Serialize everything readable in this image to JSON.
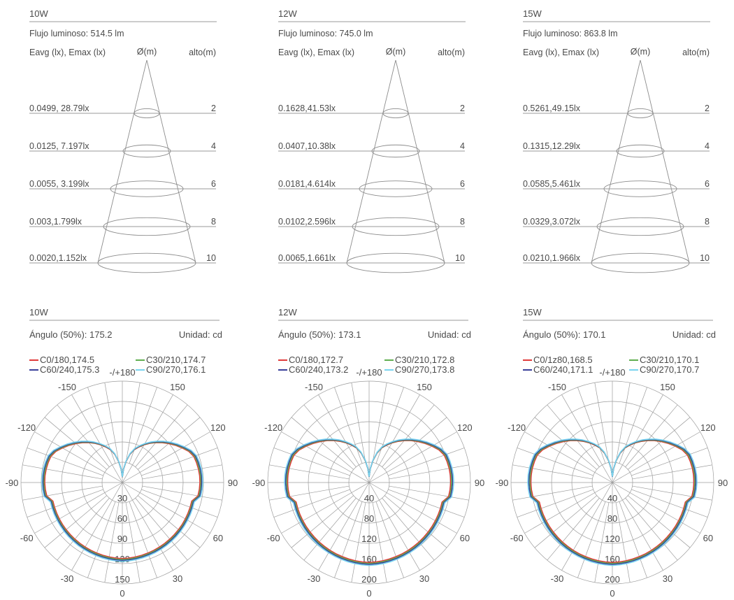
{
  "illuminance_panels": [
    {
      "title": "10W",
      "flux_label": "Flujo luminoso: 514.5 lm",
      "col_left": "Eavg (lx), Emax (lx)",
      "col_mid": "Ø(m)",
      "col_right": "alto(m)",
      "rows": [
        {
          "value": "0.0499, 28.79lx",
          "height": "2"
        },
        {
          "value": "0.0125, 7.197lx",
          "height": "4"
        },
        {
          "value": "0.0055, 3.199lx",
          "height": "6"
        },
        {
          "value": "0.003,1.799lx",
          "height": "8"
        },
        {
          "value": "0.0020,1.152lx",
          "height": "10"
        }
      ]
    },
    {
      "title": "12W",
      "flux_label": "Flujo luminoso: 745.0 lm",
      "col_left": "Eavg (lx), Emax (lx)",
      "col_mid": "Ø(m)",
      "col_right": "alto(m)",
      "rows": [
        {
          "value": "0.1628,41.53lx",
          "height": "2"
        },
        {
          "value": "0.0407,10.38lx",
          "height": "4"
        },
        {
          "value": "0.0181,4.614lx",
          "height": "6"
        },
        {
          "value": "0.0102,2.596lx",
          "height": "8"
        },
        {
          "value": "0.0065,1.661lx",
          "height": "10"
        }
      ]
    },
    {
      "title": "15W",
      "flux_label": "Flujo luminoso: 863.8 lm",
      "col_left": "Eavg (lx), Emax (lx)",
      "col_mid": "Ø(m)",
      "col_right": "alto(m)",
      "rows": [
        {
          "value": "0.5261,49.15lx",
          "height": "2"
        },
        {
          "value": "0.1315,12.29lx",
          "height": "4"
        },
        {
          "value": "0.0585,5.461lx",
          "height": "6"
        },
        {
          "value": "0.0329,3.072lx",
          "height": "8"
        },
        {
          "value": "0.0210,1.966lx",
          "height": "10"
        }
      ]
    }
  ],
  "chart_data": [
    {
      "type": "polar",
      "title": "10W",
      "angle_label": "Ángulo (50%): 175.2",
      "unit_label": "Unidad: cd",
      "angle_ticks": [
        "-/+180",
        "150",
        "120",
        "90",
        "60",
        "30",
        "0",
        "-30",
        "-60",
        "-90",
        "-120",
        "-150"
      ],
      "radial_ticks": [
        30,
        60,
        90,
        120,
        150
      ],
      "r_max": 150,
      "series": [
        {
          "name": "C0/180,174.5",
          "color": "#e03a3a"
        },
        {
          "name": "C30/210,174.7",
          "color": "#5fae4f"
        },
        {
          "name": "C60/240,175.3",
          "color": "#3a3f9a"
        },
        {
          "name": "C90/270,176.1",
          "color": "#79d4ee"
        }
      ]
    },
    {
      "type": "polar",
      "title": "12W",
      "angle_label": "Ángulo (50%): 173.1",
      "unit_label": "Unidad: cd",
      "angle_ticks": [
        "-/+180",
        "150",
        "120",
        "90",
        "60",
        "30",
        "0",
        "-30",
        "-60",
        "-90",
        "-120",
        "-150"
      ],
      "radial_ticks": [
        40,
        80,
        120,
        160,
        200
      ],
      "r_max": 200,
      "series": [
        {
          "name": "C0/180,172.7",
          "color": "#e03a3a"
        },
        {
          "name": "C30/210,172.8",
          "color": "#5fae4f"
        },
        {
          "name": "C60/240,173.2",
          "color": "#3a3f9a"
        },
        {
          "name": "C90/270,173.8",
          "color": "#79d4ee"
        }
      ]
    },
    {
      "type": "polar",
      "title": "15W",
      "angle_label": "Ángulo (50%): 170.1",
      "unit_label": "Unidad: cd",
      "angle_ticks": [
        "-/+180",
        "150",
        "120",
        "90",
        "60",
        "30",
        "0",
        "-30",
        "-60",
        "-90",
        "-120",
        "-150"
      ],
      "radial_ticks": [
        40,
        80,
        120,
        160,
        200
      ],
      "r_max": 200,
      "series": [
        {
          "name": "C0/1z80,168.5",
          "color": "#e03a3a"
        },
        {
          "name": "C30/210,170.1",
          "color": "#5fae4f"
        },
        {
          "name": "C60/240,171.1",
          "color": "#3a3f9a"
        },
        {
          "name": "C90/270,170.7",
          "color": "#79d4ee"
        }
      ]
    }
  ]
}
